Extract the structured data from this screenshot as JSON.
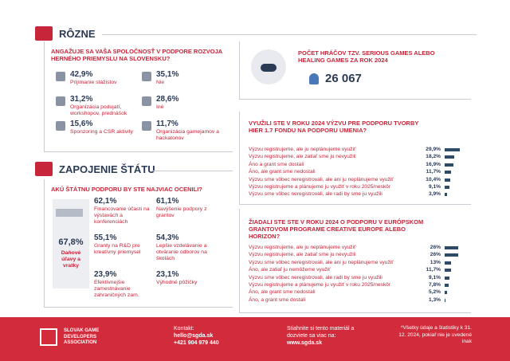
{
  "sections": [
    {
      "title": "RÔZNE"
    },
    {
      "title": "ZAPOJENIE ŠTÁTU"
    }
  ],
  "engagement": {
    "question": "ANGAŽUJE SA VAŠA SPOLOČNOSŤ V PODPORE ROZVOJA HERNÉHO PRIEMYSLU NA SLOVENSKU?",
    "items": [
      {
        "pct": "42,9%",
        "label": "Prijímanie stážistov"
      },
      {
        "pct": "35,1%",
        "label": "Nie"
      },
      {
        "pct": "31,2%",
        "label": "Organizácia podujatí, workshopov, prednášok"
      },
      {
        "pct": "28,6%",
        "label": "Iné"
      },
      {
        "pct": "15,6%",
        "label": "Sponzoring a CSR aktivity"
      },
      {
        "pct": "11,7%",
        "label": "Organizácia gamejamov a hackatonov"
      }
    ]
  },
  "players": {
    "title": "POČET HRÁČOV TZV. SERIOUS GAMES ALEBO HEALING GAMES ZA ROK 2024",
    "count": "26 067"
  },
  "support": {
    "question": "AKÚ ŠTÁTNU PODPORU BY STE NAJVIAC OCENILI?",
    "highlight": {
      "pct": "67,8%",
      "label": "Daňové úľavy a vratky"
    },
    "items": [
      {
        "pct": "62,1%",
        "label": "Financovanie účasti na výstavách a konferenciách"
      },
      {
        "pct": "61,1%",
        "label": "Navýšenie podpory z grantov"
      },
      {
        "pct": "55,1%",
        "label": "Granty na R&D pre kreatívny priemysel"
      },
      {
        "pct": "54,3%",
        "label": "Lepšie vzdelávanie a otváranie odborov na školách"
      },
      {
        "pct": "23,9%",
        "label": "Efektívnejšie zamestnávanie zahraničných zam."
      },
      {
        "pct": "23,1%",
        "label": "Výhodné pôžičky"
      }
    ]
  },
  "fund": {
    "question": "VYUŽILI STE V ROKU 2024 VÝZVU PRE PODPORU TVORBY HIER 1.7 FONDU NA PODPORU UMENIA?",
    "rows": [
      {
        "label": "Výzvu registrujeme, ale ju neplánujeme využiť",
        "value": 29.9,
        "value_label": "29,9%"
      },
      {
        "label": "Výzvu registrujeme, ale zatiaľ sme ju nevyužili",
        "value": 18.2,
        "value_label": "18,2%"
      },
      {
        "label": "Áno a grant sme dostali",
        "value": 16.9,
        "value_label": "16,9%"
      },
      {
        "label": "Áno, ale grant sme nedostali",
        "value": 11.7,
        "value_label": "11,7%"
      },
      {
        "label": "Výzvu sme vôbec neregistrovali, ale ani ju neplánujeme využiť",
        "value": 10.4,
        "value_label": "10,4%"
      },
      {
        "label": "Výzvu registrujeme a plánujeme ju využiť v roku 2025/neskôr",
        "value": 9.1,
        "value_label": "9,1%"
      },
      {
        "label": "Výzvu sme vôbec neregistrovali, ale radi by sme ju využili",
        "value": 3.9,
        "value_label": "3,9%"
      }
    ]
  },
  "creative": {
    "question": "ŽIADALI STE STE V ROKU 2024 O PODPORU V EURÓPSKOM GRANTOVOM PROGRAME CREATIVE EUROPE ALEBO HORIZON?",
    "rows": [
      {
        "label": "Výzvu registrujeme, ale ju neplánujeme využiť",
        "value": 26,
        "value_label": "26%"
      },
      {
        "label": "Výzvu registrujeme, ale zatiaľ sme ju nevyužili",
        "value": 26,
        "value_label": "26%"
      },
      {
        "label": "Výzvu sme vôbec neregistrovali, ale ani ju neplánujeme využiť",
        "value": 13,
        "value_label": "13%"
      },
      {
        "label": "Áno, ale zatiaľ ju nemôžeme využiť",
        "value": 11.7,
        "value_label": "11,7%"
      },
      {
        "label": "Výzvu sme vôbec neregistrovali, ale radi by sme ju využili",
        "value": 9.1,
        "value_label": "9,1%"
      },
      {
        "label": "Výzvu registrujeme a plánujeme ju využiť v roku 2025/neskôr",
        "value": 7.8,
        "value_label": "7,8%"
      },
      {
        "label": "Áno, ale grant sme nedostali",
        "value": 5.2,
        "value_label": "5,2%"
      },
      {
        "label": "Áno, a grant sme dostali",
        "value": 1.3,
        "value_label": "1,3%"
      }
    ]
  },
  "footer": {
    "logo": "SLOVAK GAME DEVELOPERS ASSOCIATION",
    "contact_label": "Kontakt:",
    "email": "hello@sgda.sk",
    "phone": "+421 904 979 440",
    "download": "Stiahnite si tento materiál a dozviete sa viac na:",
    "url": "www.sgda.sk",
    "note": "*Všetky údaje a štatistiky k 31. 12. 2024, pokiaľ nie je uvedené inak"
  }
}
